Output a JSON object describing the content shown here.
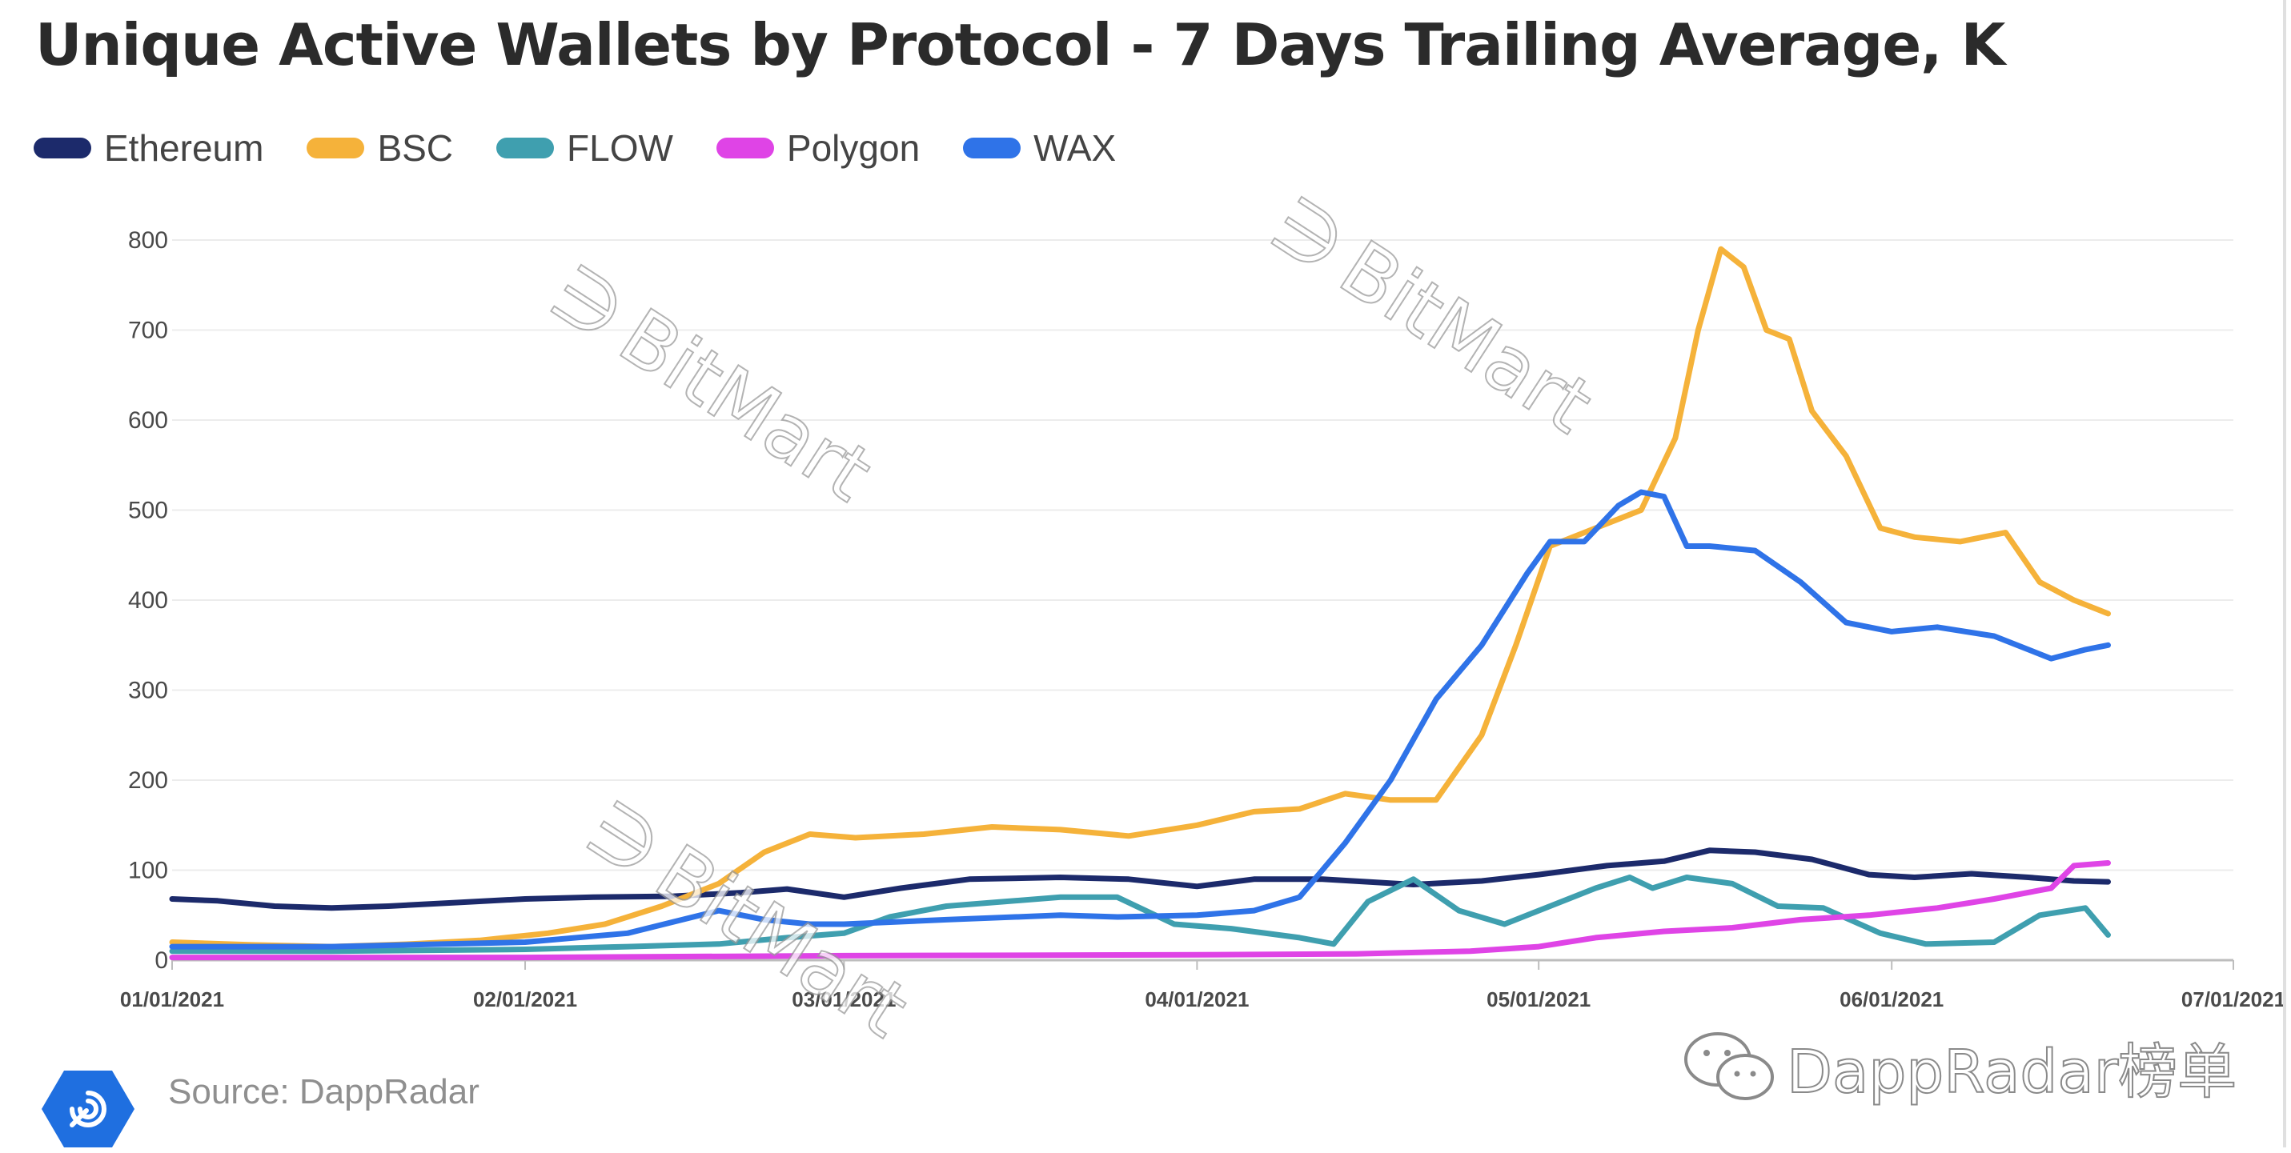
{
  "title": "Unique Active Wallets by Protocol - 7 Days Trailing Average, K",
  "source": "Source: DappRadar",
  "brand": "DappRadar榜单",
  "watermark": "BitMart",
  "chart_data": {
    "type": "line",
    "title": "Unique Active Wallets by Protocol - 7 Days Trailing Average, K",
    "x_axis": {
      "type": "date",
      "min": "2021-01-01",
      "max": "2021-07-01",
      "ticks": [
        "01/01/2021",
        "02/01/2021",
        "03/01/2021",
        "04/01/2021",
        "05/01/2021",
        "06/01/2021",
        "07/01/2021"
      ],
      "tick_dates": [
        "2021-01-01",
        "2021-02-01",
        "2021-03-01",
        "2021-04-01",
        "2021-05-01",
        "2021-06-01",
        "2021-07-01"
      ]
    },
    "y_axis": {
      "min": 0,
      "max": 800,
      "ticks": [
        0,
        100,
        200,
        300,
        400,
        500,
        600,
        700,
        800
      ]
    },
    "grid": "horizontal",
    "legend": "top-left",
    "series": [
      {
        "name": "Ethereum",
        "color": "#1c2a6b",
        "x": [
          "2021-01-01",
          "2021-01-05",
          "2021-01-10",
          "2021-01-15",
          "2021-01-20",
          "2021-01-26",
          "2021-02-01",
          "2021-02-07",
          "2021-02-14",
          "2021-02-20",
          "2021-02-24",
          "2021-03-01",
          "2021-03-06",
          "2021-03-12",
          "2021-03-20",
          "2021-03-26",
          "2021-04-01",
          "2021-04-06",
          "2021-04-12",
          "2021-04-20",
          "2021-04-26",
          "2021-05-01",
          "2021-05-07",
          "2021-05-12",
          "2021-05-16",
          "2021-05-20",
          "2021-05-25",
          "2021-05-30",
          "2021-06-03",
          "2021-06-08",
          "2021-06-13",
          "2021-06-17",
          "2021-06-20"
        ],
        "y": [
          68,
          66,
          60,
          58,
          60,
          64,
          68,
          70,
          71,
          75,
          79,
          70,
          80,
          90,
          92,
          90,
          82,
          90,
          90,
          84,
          88,
          95,
          105,
          110,
          122,
          120,
          112,
          95,
          92,
          96,
          92,
          88,
          87
        ]
      },
      {
        "name": "BSC",
        "color": "#f5b23a",
        "x": [
          "2021-01-01",
          "2021-01-08",
          "2021-01-15",
          "2021-01-22",
          "2021-01-28",
          "2021-02-03",
          "2021-02-08",
          "2021-02-13",
          "2021-02-18",
          "2021-02-22",
          "2021-02-26",
          "2021-03-02",
          "2021-03-08",
          "2021-03-14",
          "2021-03-20",
          "2021-03-26",
          "2021-04-01",
          "2021-04-06",
          "2021-04-10",
          "2021-04-14",
          "2021-04-18",
          "2021-04-22",
          "2021-04-26",
          "2021-04-29",
          "2021-05-02",
          "2021-05-06",
          "2021-05-10",
          "2021-05-13",
          "2021-05-15",
          "2021-05-17",
          "2021-05-19",
          "2021-05-21",
          "2021-05-23",
          "2021-05-25",
          "2021-05-28",
          "2021-05-31",
          "2021-06-03",
          "2021-06-07",
          "2021-06-11",
          "2021-06-14",
          "2021-06-17",
          "2021-06-20"
        ],
        "y": [
          20,
          17,
          15,
          18,
          22,
          30,
          40,
          60,
          85,
          120,
          140,
          136,
          140,
          148,
          145,
          138,
          150,
          165,
          168,
          185,
          178,
          178,
          250,
          350,
          460,
          480,
          500,
          580,
          700,
          790,
          770,
          700,
          690,
          610,
          560,
          480,
          470,
          465,
          475,
          420,
          400,
          385
        ]
      },
      {
        "name": "FLOW",
        "color": "#3f9faf",
        "x": [
          "2021-01-01",
          "2021-01-15",
          "2021-02-01",
          "2021-02-10",
          "2021-02-18",
          "2021-02-24",
          "2021-03-01",
          "2021-03-05",
          "2021-03-10",
          "2021-03-15",
          "2021-03-20",
          "2021-03-25",
          "2021-03-30",
          "2021-04-04",
          "2021-04-10",
          "2021-04-13",
          "2021-04-16",
          "2021-04-20",
          "2021-04-24",
          "2021-04-28",
          "2021-05-02",
          "2021-05-06",
          "2021-05-09",
          "2021-05-11",
          "2021-05-14",
          "2021-05-18",
          "2021-05-22",
          "2021-05-26",
          "2021-05-31",
          "2021-06-04",
          "2021-06-10",
          "2021-06-14",
          "2021-06-18",
          "2021-06-20"
        ],
        "y": [
          10,
          10,
          12,
          15,
          18,
          25,
          30,
          48,
          60,
          65,
          70,
          70,
          40,
          35,
          25,
          18,
          65,
          90,
          55,
          40,
          60,
          80,
          92,
          80,
          92,
          85,
          60,
          58,
          30,
          18,
          20,
          50,
          58,
          28
        ]
      },
      {
        "name": "Polygon",
        "color": "#df44e6",
        "x": [
          "2021-01-01",
          "2021-02-01",
          "2021-03-01",
          "2021-04-01",
          "2021-04-15",
          "2021-04-25",
          "2021-05-01",
          "2021-05-06",
          "2021-05-12",
          "2021-05-18",
          "2021-05-24",
          "2021-05-30",
          "2021-06-05",
          "2021-06-10",
          "2021-06-15",
          "2021-06-17",
          "2021-06-20"
        ],
        "y": [
          3,
          3,
          5,
          6,
          7,
          10,
          15,
          25,
          32,
          36,
          45,
          50,
          58,
          68,
          80,
          105,
          108
        ]
      },
      {
        "name": "WAX",
        "color": "#2f73e8",
        "x": [
          "2021-01-01",
          "2021-01-15",
          "2021-02-01",
          "2021-02-10",
          "2021-02-18",
          "2021-02-22",
          "2021-02-26",
          "2021-03-01",
          "2021-03-10",
          "2021-03-20",
          "2021-03-25",
          "2021-04-01",
          "2021-04-06",
          "2021-04-10",
          "2021-04-14",
          "2021-04-18",
          "2021-04-22",
          "2021-04-26",
          "2021-04-30",
          "2021-05-02",
          "2021-05-05",
          "2021-05-08",
          "2021-05-10",
          "2021-05-12",
          "2021-05-14",
          "2021-05-16",
          "2021-05-20",
          "2021-05-24",
          "2021-05-28",
          "2021-06-01",
          "2021-06-05",
          "2021-06-10",
          "2021-06-15",
          "2021-06-18",
          "2021-06-20"
        ],
        "y": [
          15,
          15,
          20,
          30,
          55,
          45,
          40,
          40,
          45,
          50,
          48,
          50,
          55,
          70,
          130,
          200,
          290,
          350,
          430,
          465,
          465,
          505,
          520,
          515,
          460,
          460,
          455,
          420,
          375,
          365,
          370,
          360,
          335,
          345,
          350
        ]
      }
    ]
  }
}
